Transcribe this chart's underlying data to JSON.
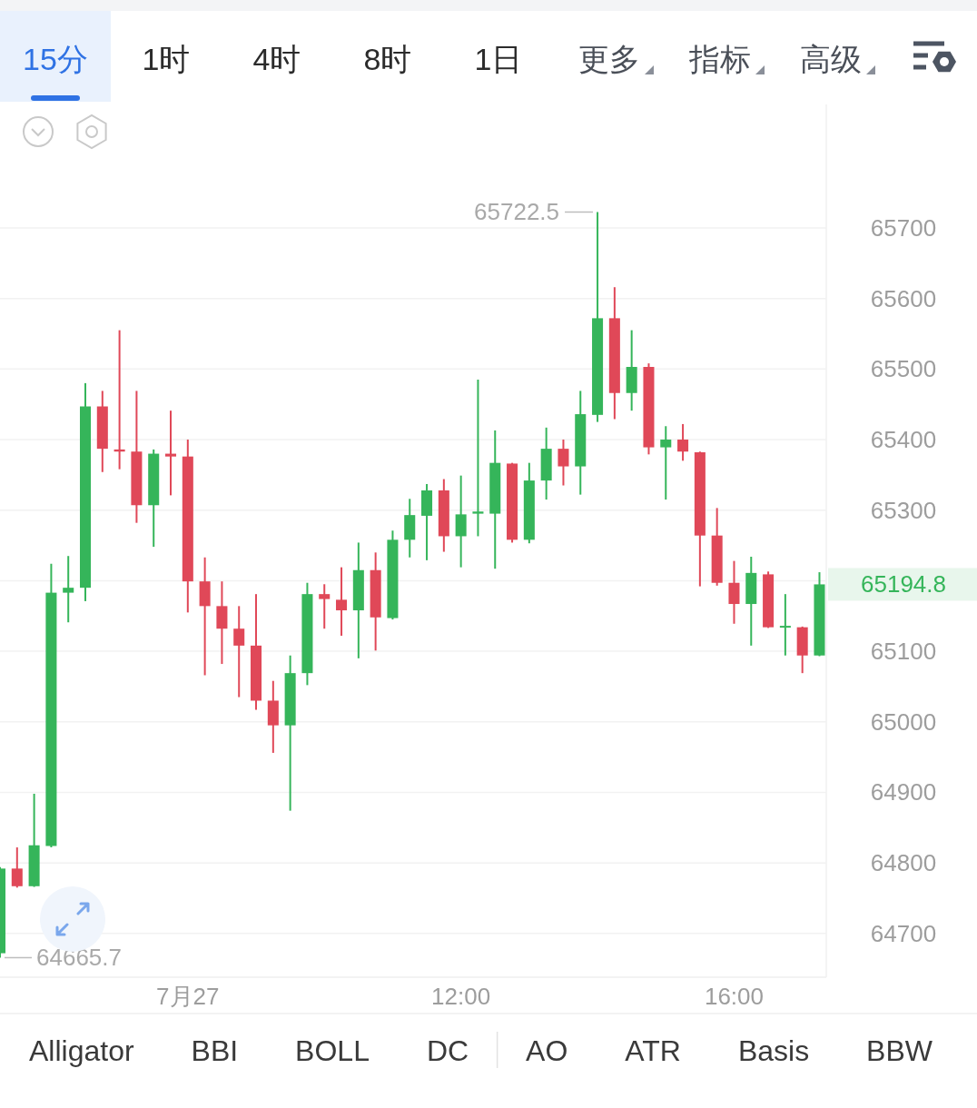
{
  "chart_data": {
    "type": "candlestick",
    "x": [
      5.25,
      5.5,
      5.75,
      6.0,
      6.25,
      6.5,
      6.75,
      7.0,
      7.25,
      7.5,
      7.75,
      8.0,
      8.25,
      8.5,
      8.75,
      9.0,
      9.25,
      9.5,
      9.75,
      10.0,
      10.25,
      10.5,
      10.75,
      11.0,
      11.25,
      11.5,
      11.75,
      12.0,
      12.25,
      12.5,
      12.75,
      13.0,
      13.25,
      13.5,
      13.75,
      14.0,
      14.25,
      14.5,
      14.75,
      15.0,
      15.25,
      15.5,
      15.75,
      16.0,
      16.25,
      16.5,
      16.75,
      17.0,
      17.25
    ],
    "ohlc": [
      [
        64672,
        64794,
        64665.7,
        64792
      ],
      [
        64792,
        64822,
        64765,
        64767
      ],
      [
        64767,
        64898,
        64766,
        64825
      ],
      [
        64824,
        65224,
        64822,
        65183
      ],
      [
        65183,
        65235,
        65141,
        65190
      ],
      [
        65190,
        65480,
        65171,
        65447
      ],
      [
        65447,
        65469,
        65354,
        65387
      ],
      [
        65386,
        65555,
        65358,
        65383
      ],
      [
        65383,
        65469,
        65282,
        65307
      ],
      [
        65307,
        65386,
        65248,
        65380
      ],
      [
        65380,
        65441,
        65321,
        65376
      ],
      [
        65376,
        65400,
        65155,
        65199
      ],
      [
        65199,
        65233,
        65066,
        65164
      ],
      [
        65164,
        65199,
        65082,
        65132
      ],
      [
        65132,
        65164,
        65035,
        65108
      ],
      [
        65108,
        65181,
        65017,
        65030
      ],
      [
        65030,
        65058,
        64956,
        64995
      ],
      [
        64995,
        65094,
        64874,
        65069
      ],
      [
        65069,
        65197,
        65052,
        65181
      ],
      [
        65181,
        65195,
        65132,
        65174
      ],
      [
        65173,
        65219,
        65122,
        65158
      ],
      [
        65158,
        65254,
        65090,
        65215
      ],
      [
        65215,
        65240,
        65101,
        65148
      ],
      [
        65147,
        65271,
        65145,
        65258
      ],
      [
        65258,
        65316,
        65233,
        65293
      ],
      [
        65292,
        65337,
        65229,
        65328
      ],
      [
        65328,
        65344,
        65241,
        65263
      ],
      [
        65263,
        65349,
        65219,
        65294
      ],
      [
        65295,
        65485,
        65263,
        65298
      ],
      [
        65295,
        65413,
        65217,
        65367
      ],
      [
        65366,
        65367,
        65254,
        65258
      ],
      [
        65258,
        65367,
        65253,
        65342
      ],
      [
        65342,
        65417,
        65315,
        65387
      ],
      [
        65387,
        65400,
        65335,
        65362
      ],
      [
        65362,
        65469,
        65322,
        65436
      ],
      [
        65435,
        65722.5,
        65425,
        65572
      ],
      [
        65572,
        65616,
        65429,
        65466
      ],
      [
        65466,
        65555,
        65441,
        65503
      ],
      [
        65503,
        65508,
        65379,
        65389
      ],
      [
        65389,
        65419,
        65315,
        65400
      ],
      [
        65400,
        65422,
        65370,
        65383
      ],
      [
        65382,
        65383,
        65192,
        65264
      ],
      [
        65264,
        65303,
        65193,
        65197
      ],
      [
        65197,
        65228,
        65139,
        65167
      ],
      [
        65167,
        65234,
        65108,
        65211
      ],
      [
        65209,
        65213,
        65133,
        65134
      ],
      [
        65134,
        65181,
        65094,
        65136
      ],
      [
        65134,
        65135,
        65069,
        65094
      ],
      [
        65094,
        65212,
        65093,
        65194.8
      ]
    ],
    "colors": [
      "#35b55a",
      "#e04858",
      "#35b55a",
      "#35b55a",
      "#35b55a",
      "#35b55a",
      "#e04858",
      "#e04858",
      "#e04858",
      "#35b55a",
      "#e04858",
      "#e04858",
      "#e04858",
      "#e04858",
      "#e04858",
      "#e04858",
      "#e04858",
      "#35b55a",
      "#35b55a",
      "#e04858",
      "#e04858",
      "#35b55a",
      "#e04858",
      "#35b55a",
      "#35b55a",
      "#35b55a",
      "#e04858",
      "#35b55a",
      "#35b55a",
      "#35b55a",
      "#e04858",
      "#35b55a",
      "#35b55a",
      "#e04858",
      "#35b55a",
      "#35b55a",
      "#e04858",
      "#35b55a",
      "#e04858",
      "#35b55a",
      "#e04858",
      "#e04858",
      "#e04858",
      "#e04858",
      "#35b55a",
      "#e04858",
      "#35b55a",
      "#e04858",
      "#35b55a"
    ],
    "xlim": [
      5.25,
      17.35
    ],
    "ylim": [
      64638,
      65875
    ],
    "xticks": [
      {
        "value": 8,
        "label": "7月27"
      },
      {
        "value": 12,
        "label": "12:00"
      },
      {
        "value": 16,
        "label": "16:00"
      }
    ],
    "yticks": [
      64700,
      64800,
      64900,
      65000,
      65100,
      {
        "value": 65200,
        "label": null
      },
      65300,
      65400,
      65500,
      65600,
      65700
    ],
    "grid": "y",
    "annotations": [
      "15分",
      "1时",
      "4时",
      "8时",
      "1日",
      "更多",
      "指标",
      "高级",
      "Alligator",
      "BBI",
      "BOLL",
      "DC",
      "AO",
      "ATR",
      "Basis",
      "BBW",
      {
        "text": "65722.5",
        "x": 14.0,
        "y": 65722.5
      },
      {
        "text": "64665.7",
        "x": 5.25,
        "y": 64665.7
      },
      {
        "text": "65194.8",
        "x": 17.25,
        "y": 65194.8
      }
    ]
  }
}
